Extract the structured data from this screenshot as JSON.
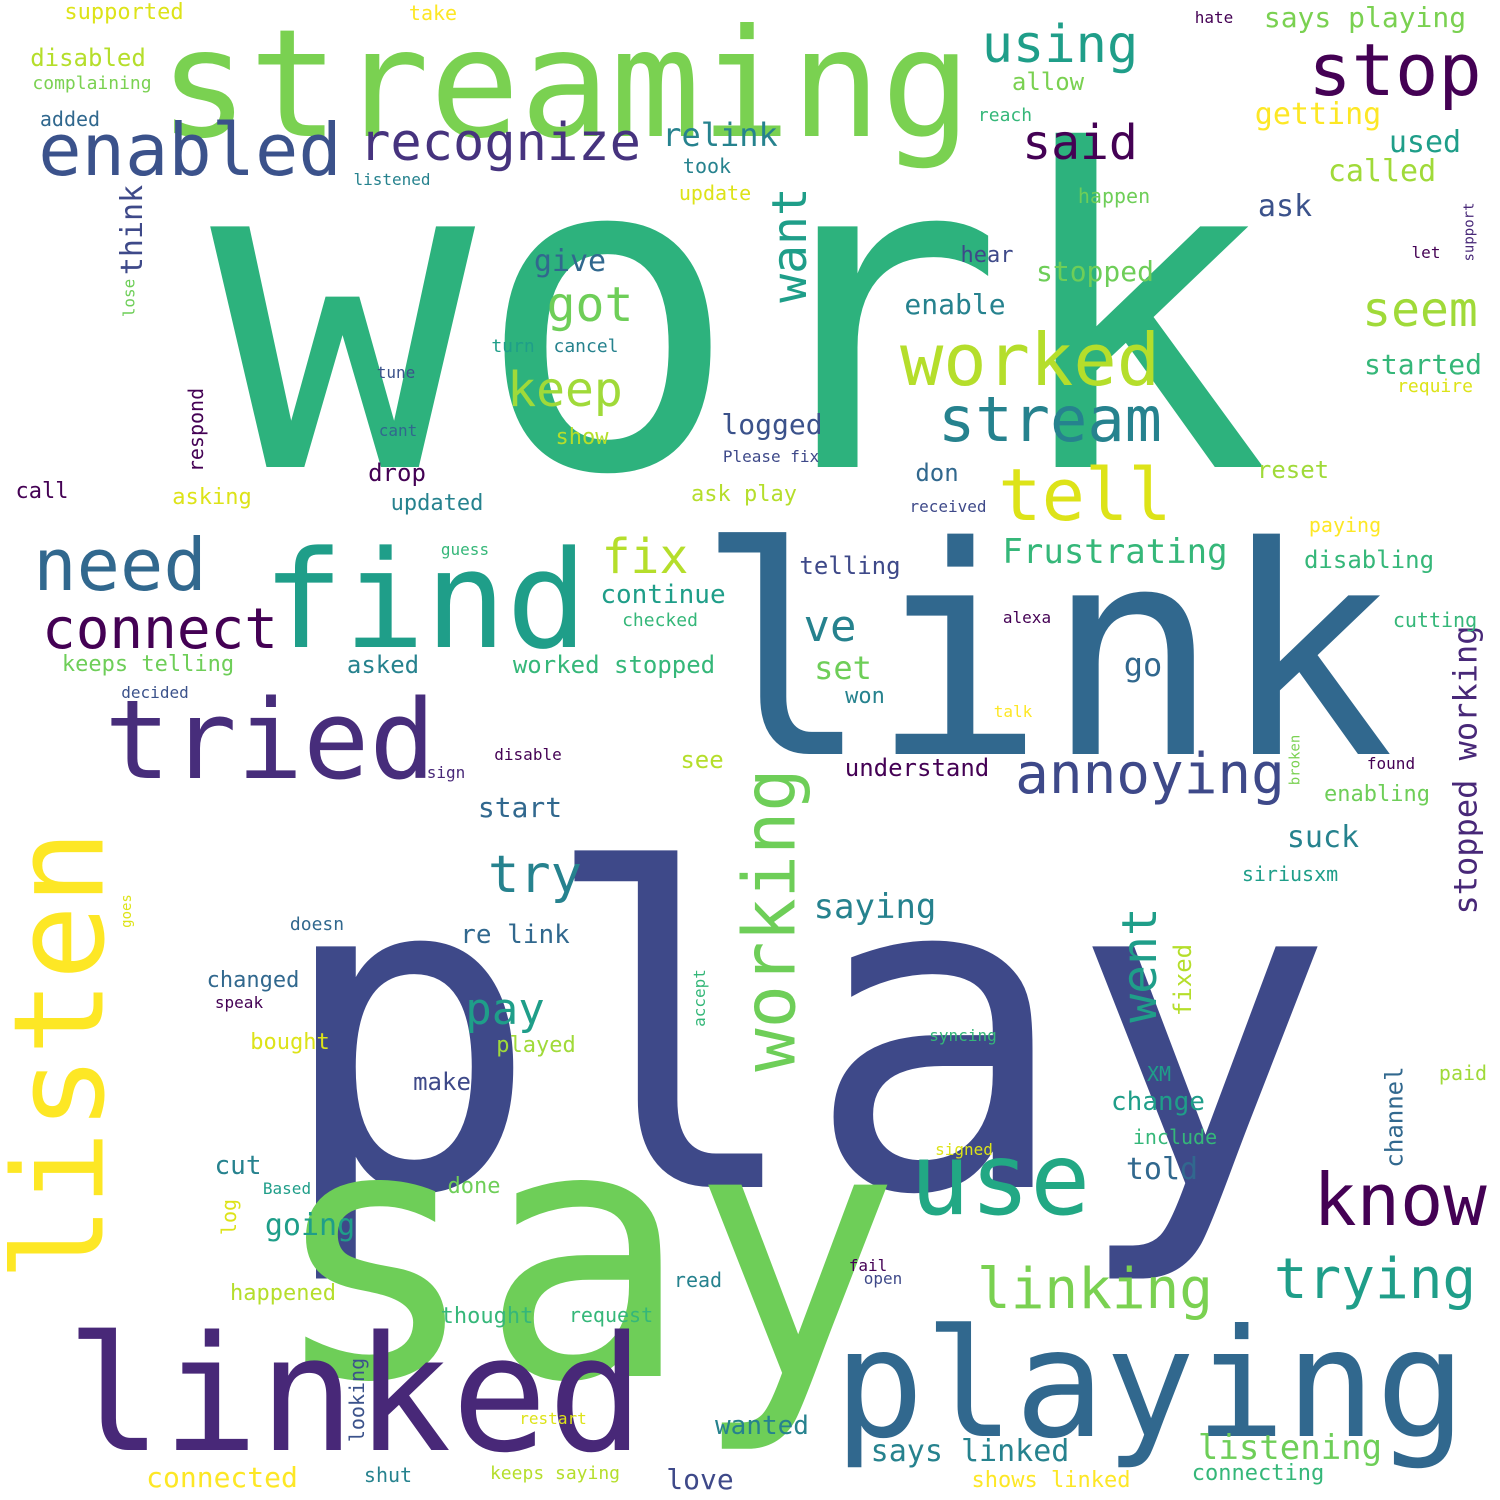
{
  "colors": {
    "background": "#ffffff",
    "palette": [
      "#440154",
      "#482878",
      "#3e4989",
      "#31688e",
      "#26828e",
      "#1f9e89",
      "#35b779",
      "#6ece58",
      "#b5de2b",
      "#fde725"
    ]
  },
  "words": [
    {
      "text": "work",
      "color": "#2db27d",
      "size": 1.0
    },
    {
      "text": "play",
      "color": "#3e4989",
      "size": 0.96
    },
    {
      "text": "say",
      "color": "#6ece58",
      "size": 0.8
    },
    {
      "text": "link",
      "color": "#31688e",
      "size": 0.66
    },
    {
      "text": "streaming",
      "color": "#7ad151",
      "size": 0.43
    },
    {
      "text": "linked",
      "color": "#482878",
      "size": 0.43
    },
    {
      "text": "playing",
      "color": "#31688e",
      "size": 0.4
    },
    {
      "text": "find",
      "color": "#1f9e89",
      "size": 0.38
    },
    {
      "text": "listen",
      "color": "#fde725",
      "size": 0.36
    },
    {
      "text": "tried",
      "color": "#472d7b",
      "size": 0.32
    },
    {
      "text": "use",
      "color": "#22a884",
      "size": 0.3
    },
    {
      "text": "worked",
      "color": "#b5de2b",
      "size": 0.22
    },
    {
      "text": "stop",
      "color": "#440154",
      "size": 0.22
    },
    {
      "text": "tell",
      "color": "#dde318",
      "size": 0.21
    },
    {
      "text": "enabled",
      "color": "#3b528b",
      "size": 0.2
    },
    {
      "text": "know",
      "color": "#440154",
      "size": 0.2
    },
    {
      "text": "need",
      "color": "#31688e",
      "size": 0.2
    },
    {
      "text": "working",
      "color": "#6ece58",
      "size": 0.19
    },
    {
      "text": "stream",
      "color": "#26828e",
      "size": 0.17
    },
    {
      "text": "annoying",
      "color": "#3e4989",
      "size": 0.16
    },
    {
      "text": "linking",
      "color": "#7ad151",
      "size": 0.16
    },
    {
      "text": "trying",
      "color": "#1f9e89",
      "size": 0.16
    },
    {
      "text": "connect",
      "color": "#440154",
      "size": 0.16
    },
    {
      "text": "recognize",
      "color": "#46337e",
      "size": 0.15
    },
    {
      "text": "using",
      "color": "#1f9e89",
      "size": 0.15
    },
    {
      "text": "try",
      "color": "#26828e",
      "size": 0.15
    },
    {
      "text": "want",
      "color": "#1f9e89",
      "size": 0.14
    },
    {
      "text": "fix",
      "color": "#b5de2b",
      "size": 0.14
    },
    {
      "text": "keep",
      "color": "#a0da39",
      "size": 0.13
    },
    {
      "text": "seem",
      "color": "#a0da39",
      "size": 0.13
    },
    {
      "text": "said",
      "color": "#440154",
      "size": 0.13
    },
    {
      "text": "got",
      "color": "#6ece58",
      "size": 0.13
    },
    {
      "text": "went",
      "color": "#1f9e89",
      "size": 0.13
    },
    {
      "text": "pay",
      "color": "#1f9e89",
      "size": 0.12
    },
    {
      "text": "ve",
      "color": "#26828e",
      "size": 0.12
    },
    {
      "text": "Frustrating",
      "color": "#35b779",
      "size": 0.1
    },
    {
      "text": "relink",
      "color": "#26828e",
      "size": 0.1
    },
    {
      "text": "listening",
      "color": "#6ece58",
      "size": 0.1
    },
    {
      "text": "stopped working",
      "color": "#482878",
      "size": 0.1
    },
    {
      "text": "think",
      "color": "#3e4989",
      "size": 0.09
    },
    {
      "text": "saying",
      "color": "#26828e",
      "size": 0.09
    },
    {
      "text": "says playing",
      "color": "#7ad151",
      "size": 0.08
    },
    {
      "text": "getting",
      "color": "#fde725",
      "size": 0.08
    },
    {
      "text": "used",
      "color": "#1f9e89",
      "size": 0.08
    },
    {
      "text": "called",
      "color": "#a0da39",
      "size": 0.08
    },
    {
      "text": "ask",
      "color": "#3b528b",
      "size": 0.08
    },
    {
      "text": "give",
      "color": "#31688e",
      "size": 0.08
    },
    {
      "text": "stopped",
      "color": "#6ece58",
      "size": 0.08
    },
    {
      "text": "enable",
      "color": "#26828e",
      "size": 0.08
    },
    {
      "text": "started",
      "color": "#35b779",
      "size": 0.08
    },
    {
      "text": "logged",
      "color": "#3b528b",
      "size": 0.08
    },
    {
      "text": "go",
      "color": "#31688e",
      "size": 0.08
    },
    {
      "text": "set",
      "color": "#6ece58",
      "size": 0.08
    },
    {
      "text": "continue",
      "color": "#1f9e89",
      "size": 0.07
    },
    {
      "text": "understand",
      "color": "#440154",
      "size": 0.07
    },
    {
      "text": "start",
      "color": "#31688e",
      "size": 0.07
    },
    {
      "text": "suck",
      "color": "#26828e",
      "size": 0.08
    },
    {
      "text": "re link",
      "color": "#31688e",
      "size": 0.07
    },
    {
      "text": "says linked",
      "color": "#26828e",
      "size": 0.08
    },
    {
      "text": "told",
      "color": "#31688e",
      "size": 0.08
    },
    {
      "text": "change",
      "color": "#1f9e89",
      "size": 0.07
    },
    {
      "text": "going",
      "color": "#1f9e89",
      "size": 0.08
    },
    {
      "text": "cut",
      "color": "#26828e",
      "size": 0.07
    },
    {
      "text": "make",
      "color": "#3e4989",
      "size": 0.07
    },
    {
      "text": "wanted",
      "color": "#26828e",
      "size": 0.07
    },
    {
      "text": "love",
      "color": "#3e4989",
      "size": 0.07
    },
    {
      "text": "connected",
      "color": "#fde725",
      "size": 0.07
    },
    {
      "text": "disabled",
      "color": "#b5de2b",
      "size": 0.07
    },
    {
      "text": "allow",
      "color": "#7ad151",
      "size": 0.06
    },
    {
      "text": "supported",
      "color": "#dde318",
      "size": 0.06
    },
    {
      "text": "keeps telling",
      "color": "#6ece58",
      "size": 0.06
    },
    {
      "text": "asked",
      "color": "#26828e",
      "size": 0.06
    },
    {
      "text": "worked stopped",
      "color": "#35b779",
      "size": 0.06
    },
    {
      "text": "ask play",
      "color": "#b5de2b",
      "size": 0.06
    },
    {
      "text": "telling",
      "color": "#3e4989",
      "size": 0.06
    },
    {
      "text": "disabling",
      "color": "#35b779",
      "size": 0.06
    },
    {
      "text": "reset",
      "color": "#a0da39",
      "size": 0.06
    },
    {
      "text": "enabling",
      "color": "#6ece58",
      "size": 0.06
    },
    {
      "text": "hear",
      "color": "#3e4989",
      "size": 0.06
    },
    {
      "text": "show",
      "color": "#b5de2b",
      "size": 0.06
    },
    {
      "text": "drop",
      "color": "#440154",
      "size": 0.06
    },
    {
      "text": "don",
      "color": "#31688e",
      "size": 0.06
    },
    {
      "text": "asking",
      "color": "#dde318",
      "size": 0.06
    },
    {
      "text": "call",
      "color": "#440154",
      "size": 0.06
    },
    {
      "text": "updated",
      "color": "#26828e",
      "size": 0.06
    },
    {
      "text": "see",
      "color": "#b5de2b",
      "size": 0.06
    },
    {
      "text": "won",
      "color": "#26828e",
      "size": 0.06
    },
    {
      "text": "happened",
      "color": "#b5de2b",
      "size": 0.06
    },
    {
      "text": "thought",
      "color": "#35b779",
      "size": 0.06
    },
    {
      "text": "shows linked",
      "color": "#fde725",
      "size": 0.06
    },
    {
      "text": "connecting",
      "color": "#35b779",
      "size": 0.06
    },
    {
      "text": "fixed",
      "color": "#b5de2b",
      "size": 0.06
    },
    {
      "text": "channel",
      "color": "#31688e",
      "size": 0.06
    },
    {
      "text": "done",
      "color": "#6ece58",
      "size": 0.06
    },
    {
      "text": "bought",
      "color": "#dde318",
      "size": 0.06
    },
    {
      "text": "played",
      "color": "#a0da39",
      "size": 0.06
    },
    {
      "text": "read",
      "color": "#26828e",
      "size": 0.05
    },
    {
      "text": "keeps saying",
      "color": "#b5de2b",
      "size": 0.05
    },
    {
      "text": "shut",
      "color": "#26828e",
      "size": 0.05
    },
    {
      "text": "looking",
      "color": "#3b528b",
      "size": 0.05
    },
    {
      "text": "changed",
      "color": "#31688e",
      "size": 0.05
    },
    {
      "text": "log",
      "color": "#dde318",
      "size": 0.05
    },
    {
      "text": "respond",
      "color": "#440154",
      "size": 0.05
    },
    {
      "text": "paying",
      "color": "#fde725",
      "size": 0.05
    },
    {
      "text": "cutting",
      "color": "#35b779",
      "size": 0.05
    },
    {
      "text": "siriusxm",
      "color": "#1f9e89",
      "size": 0.05
    },
    {
      "text": "XM",
      "color": "#1f9e89",
      "size": 0.05
    },
    {
      "text": "paid",
      "color": "#a0da39",
      "size": 0.05
    },
    {
      "text": "include",
      "color": "#35b779",
      "size": 0.05
    },
    {
      "text": "request",
      "color": "#35b779",
      "size": 0.05
    },
    {
      "text": "take",
      "color": "#fde725",
      "size": 0.05
    },
    {
      "text": "complaining",
      "color": "#7ad151",
      "size": 0.04
    },
    {
      "text": "added",
      "color": "#31688e",
      "size": 0.05
    },
    {
      "text": "reach",
      "color": "#35b779",
      "size": 0.04
    },
    {
      "text": "hate",
      "color": "#440154",
      "size": 0.04
    },
    {
      "text": "took",
      "color": "#26828e",
      "size": 0.05
    },
    {
      "text": "listened",
      "color": "#26828e",
      "size": 0.04
    },
    {
      "text": "update",
      "color": "#dde318",
      "size": 0.05
    },
    {
      "text": "happen",
      "color": "#6ece58",
      "size": 0.05
    },
    {
      "text": "support",
      "color": "#482878",
      "size": 0.04
    },
    {
      "text": "let",
      "color": "#440154",
      "size": 0.04
    },
    {
      "text": "require",
      "color": "#dde318",
      "size": 0.05
    },
    {
      "text": "turn",
      "color": "#1f9e89",
      "size": 0.05
    },
    {
      "text": "cancel",
      "color": "#26828e",
      "size": 0.04
    },
    {
      "text": "tune",
      "color": "#3b528b",
      "size": 0.04
    },
    {
      "text": "cant",
      "color": "#31688e",
      "size": 0.04
    },
    {
      "text": "lose",
      "color": "#6ece58",
      "size": 0.04
    },
    {
      "text": "Please fix",
      "color": "#3e4989",
      "size": 0.04
    },
    {
      "text": "received",
      "color": "#3e4989",
      "size": 0.04
    },
    {
      "text": "guess",
      "color": "#35b779",
      "size": 0.04
    },
    {
      "text": "checked",
      "color": "#35b779",
      "size": 0.04
    },
    {
      "text": "alexa",
      "color": "#440154",
      "size": 0.04
    },
    {
      "text": "decided",
      "color": "#3b528b",
      "size": 0.04
    },
    {
      "text": "talk",
      "color": "#fde725",
      "size": 0.04
    },
    {
      "text": "broken",
      "color": "#7ad151",
      "size": 0.04
    },
    {
      "text": "found",
      "color": "#440154",
      "size": 0.04
    },
    {
      "text": "disable",
      "color": "#440154",
      "size": 0.04
    },
    {
      "text": "sign",
      "color": "#482878",
      "size": 0.04
    },
    {
      "text": "doesn",
      "color": "#31688e",
      "size": 0.04
    },
    {
      "text": "goes",
      "color": "#dde318",
      "size": 0.04
    },
    {
      "text": "speak",
      "color": "#440154",
      "size": 0.04
    },
    {
      "text": "accept",
      "color": "#35b779",
      "size": 0.04
    },
    {
      "text": "syncing",
      "color": "#35b779",
      "size": 0.04
    },
    {
      "text": "signed",
      "color": "#dde318",
      "size": 0.04
    },
    {
      "text": "Based",
      "color": "#1f9e89",
      "size": 0.04
    },
    {
      "text": "fail",
      "color": "#440154",
      "size": 0.04
    },
    {
      "text": "open",
      "color": "#3e4989",
      "size": 0.04
    },
    {
      "text": "restart",
      "color": "#dde318",
      "size": 0.04
    }
  ]
}
